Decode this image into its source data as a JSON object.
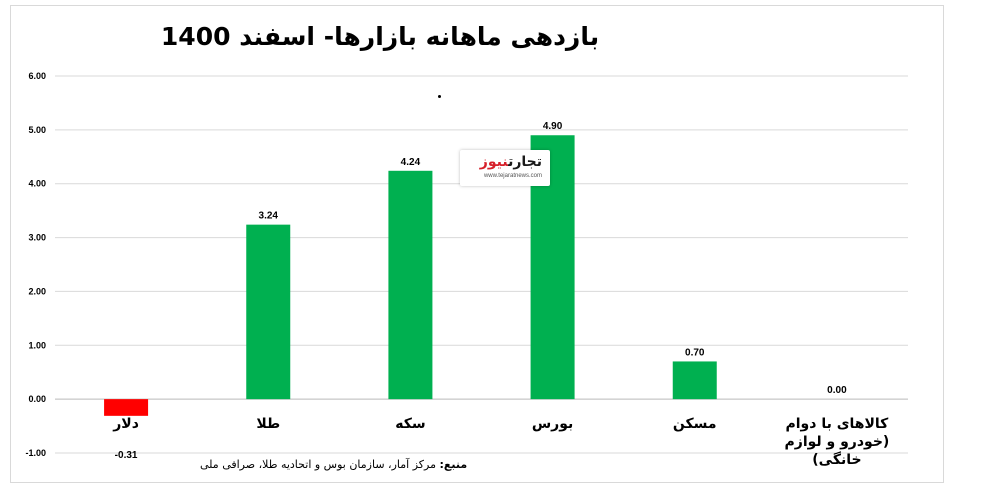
{
  "chart_data": {
    "type": "bar",
    "title": "بازدهی ماهانه بازارها- اسفند 1400",
    "categories": [
      "دلار",
      "طلا",
      "سکه",
      "بورس",
      "مسکن",
      "کالاهای با دوام (خودرو و لوازم خانگی)"
    ],
    "values": [
      -0.31,
      3.24,
      4.24,
      4.9,
      0.7,
      0.0
    ],
    "value_labels": [
      "-0.31",
      "3.24",
      "4.24",
      "4.90",
      "0.70",
      "0.00"
    ],
    "bar_colors": [
      "#ff0000",
      "#00b050",
      "#00b050",
      "#00b050",
      "#00b050",
      "#00b050"
    ],
    "ylim": [
      -1,
      6
    ],
    "yticks": [
      "-1.00",
      "0.00",
      "1.00",
      "2.00",
      "3.00",
      "4.00",
      "5.00",
      "6.00"
    ],
    "grid": true,
    "xlabel": "",
    "ylabel": ""
  },
  "source": {
    "label": "منبع:",
    "text": "مرکز آمار، سازمان بوس و اتحادیه طلا، صرافی ملی"
  },
  "watermark": {
    "brand_part1": "تجارت",
    "brand_part2": "نیوز",
    "url": "www.tejaratnews.com"
  }
}
